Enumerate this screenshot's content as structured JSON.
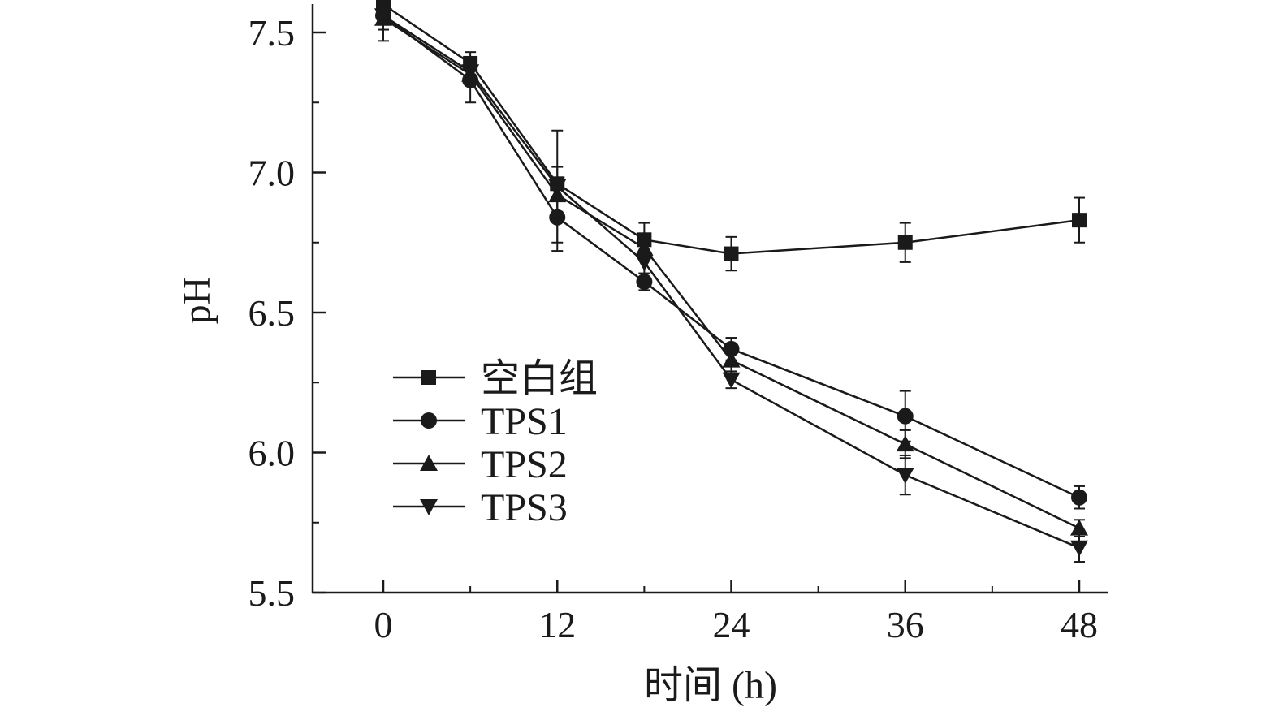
{
  "chart_data": {
    "type": "line",
    "title": "",
    "xlabel": "时间 (h)",
    "ylabel": "pH",
    "x": [
      0,
      6,
      12,
      18,
      24,
      36,
      48
    ],
    "xlim": [
      -4,
      50
    ],
    "ylim": [
      5.5,
      7.6
    ],
    "xticks": [
      0,
      12,
      24,
      36,
      48
    ],
    "xtick_labels": [
      "0",
      "12",
      "24",
      "36",
      "48"
    ],
    "xminor_ticks": [
      6,
      18,
      30,
      42
    ],
    "yticks": [
      5.5,
      6.0,
      6.5,
      7.0,
      7.5
    ],
    "ytick_labels": [
      "5.5",
      "6.0",
      "6.5",
      "7.0",
      "7.5"
    ],
    "yminor_ticks": [
      5.75,
      6.25,
      6.75,
      7.25
    ],
    "grid": false,
    "legend_position": "center-left",
    "series": [
      {
        "name": "空白组",
        "marker": "square",
        "values": [
          7.6,
          7.39,
          6.96,
          6.76,
          6.71,
          6.75,
          6.83
        ],
        "errors": [
          0.05,
          0.04,
          0.06,
          0.06,
          0.06,
          0.07,
          0.08
        ]
      },
      {
        "name": "TPS1",
        "marker": "circle",
        "values": [
          7.56,
          7.33,
          6.84,
          6.61,
          6.37,
          6.13,
          5.84
        ],
        "errors": [
          0.09,
          0.08,
          0.12,
          0.03,
          0.04,
          0.09,
          0.04
        ]
      },
      {
        "name": "TPS2",
        "marker": "triangle-up",
        "values": [
          7.55,
          7.35,
          6.92,
          6.73,
          6.33,
          6.03,
          5.73
        ],
        "errors": [
          0.04,
          0.04,
          0.06,
          0.04,
          0.04,
          0.05,
          0.03
        ]
      },
      {
        "name": "TPS3",
        "marker": "triangle-down",
        "values": [
          7.56,
          7.36,
          6.95,
          6.68,
          6.26,
          5.92,
          5.66
        ],
        "errors": [
          0.03,
          0.04,
          0.2,
          0.04,
          0.03,
          0.07,
          0.05
        ]
      }
    ],
    "colors": {
      "line": "#1a1a1a",
      "axis": "#1a1a1a"
    }
  }
}
